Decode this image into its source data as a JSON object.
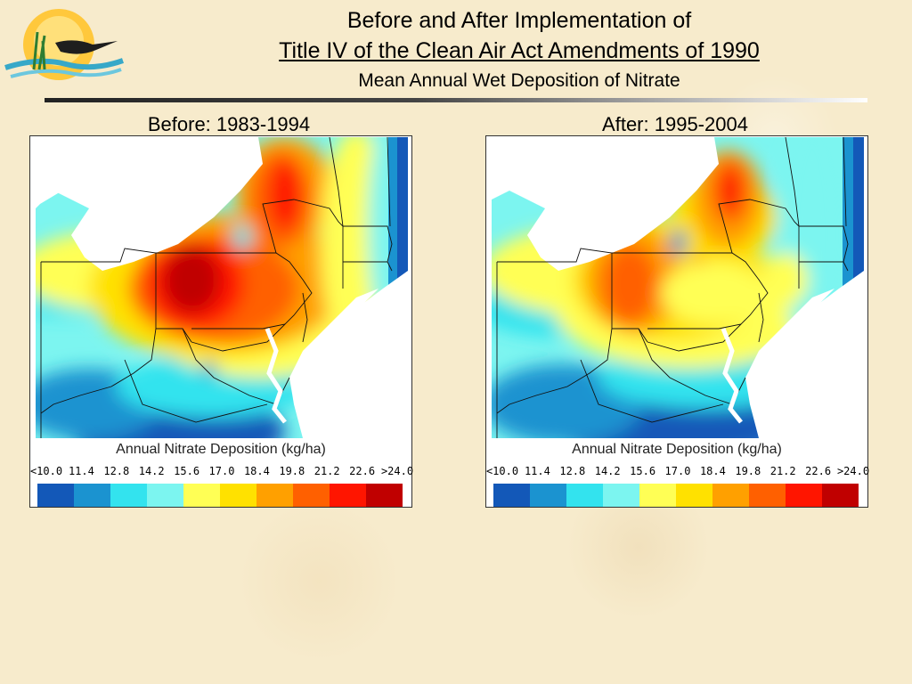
{
  "header": {
    "title_line1": "Before and After Implementation of",
    "title_line2": "Title IV of the Clean Air Act Amendments of 1990",
    "title_line3": "Mean Annual Wet Deposition of Nitrate"
  },
  "maps": [
    {
      "caption": "Before: 1983-1994",
      "legend_title": "Annual Nitrate Deposition (kg/ha)"
    },
    {
      "caption": "After: 1995-2004",
      "legend_title": "Annual Nitrate Deposition (kg/ha)"
    }
  ],
  "legend": {
    "ticks": [
      "<10.0",
      "11.4",
      "12.8",
      "14.2",
      "15.6",
      "17.0",
      "18.4",
      "19.8",
      "21.2",
      "22.6",
      ">24.0"
    ],
    "colors": [
      "#1358b8",
      "#1b93d0",
      "#33e3ee",
      "#7cf5f0",
      "#ffff55",
      "#ffe100",
      "#ffa000",
      "#ff6000",
      "#ff1500",
      "#c00000"
    ]
  }
}
